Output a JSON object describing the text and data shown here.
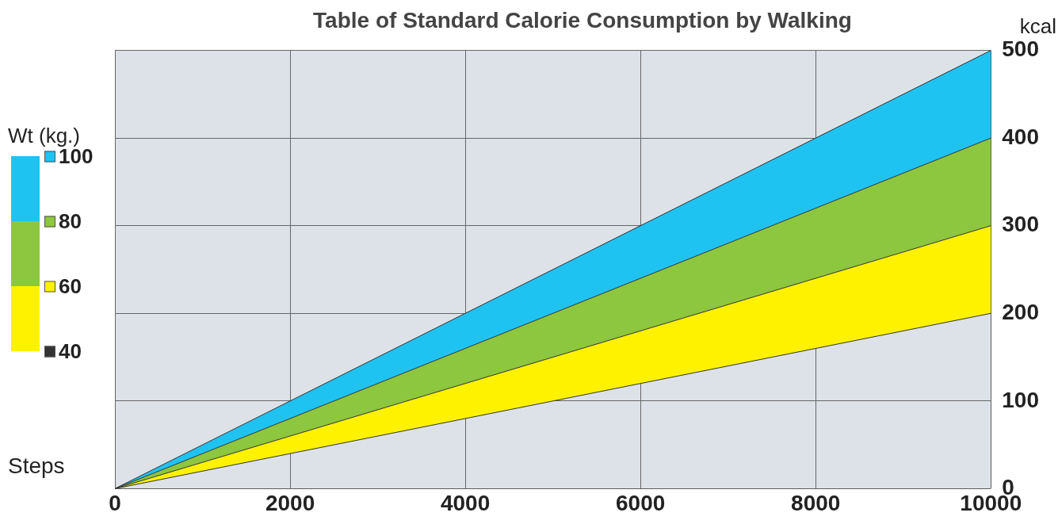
{
  "chart_data": {
    "type": "area",
    "title": "Table of Standard Calorie Consumption by Walking",
    "xlabel": "Steps",
    "ylabel": "kcal",
    "legend_title": "Wt (kg.)",
    "x": [
      0,
      10000
    ],
    "series": [
      {
        "name": "40",
        "type": "line",
        "color": "#333333",
        "values": [
          0,
          200
        ]
      },
      {
        "name": "60",
        "color": "#fff200",
        "values": [
          0,
          300
        ]
      },
      {
        "name": "80",
        "color": "#8dc63f",
        "values": [
          0,
          400
        ]
      },
      {
        "name": "100",
        "color": "#1ec3f2",
        "values": [
          0,
          500
        ]
      }
    ],
    "xlim": [
      0,
      10000
    ],
    "xticks": [
      0,
      2000,
      4000,
      6000,
      8000,
      10000
    ],
    "ylim": [
      0,
      500
    ],
    "yticks": [
      0,
      100,
      200,
      300,
      400,
      500
    ],
    "grid": true,
    "legend": "left"
  }
}
